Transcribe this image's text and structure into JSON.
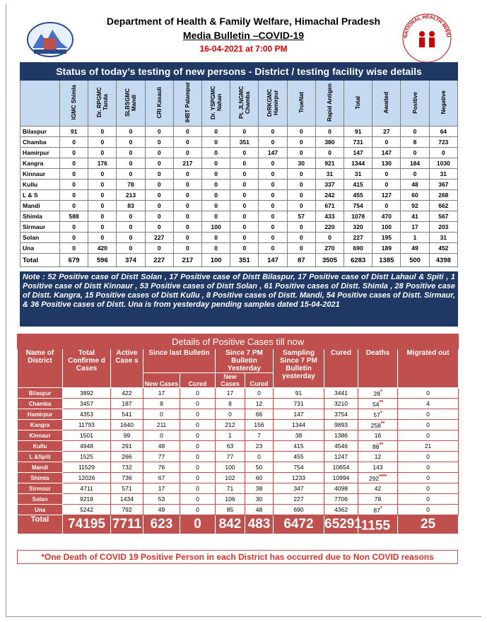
{
  "header": {
    "title": "Department of Health & Family Welfare, Himachal Pradesh",
    "subtitle": "Media Bulletin –COVID-19",
    "date": "16-04-2021 at 7:00 PM",
    "logo_text": "NATIONAL HEALTH MISSION"
  },
  "testing": {
    "title": "Status of today’s testing of new persons - District / testing facility wise details",
    "columns": [
      "IGMC Shimla",
      "Dr. RPGMC Tanda",
      "SLBSGMC Mandi",
      "CRI Kasauli",
      "IHBT Palampur",
      "Dr. YSPGMC Nahan",
      "Pt. JLNGMC Chamba",
      "DrRKGMC Hamirpur",
      "TrueNat",
      "Rapid Antigen",
      "Total",
      "Awaited",
      "Positive",
      "Negative"
    ],
    "rows": [
      [
        "Bilaspur",
        "91",
        "0",
        "0",
        "0",
        "0",
        "0",
        "0",
        "0",
        "0",
        "0",
        "91",
        "27",
        "0",
        "64"
      ],
      [
        "Chamba",
        "0",
        "0",
        "0",
        "0",
        "0",
        "0",
        "351",
        "0",
        "0",
        "380",
        "731",
        "0",
        "8",
        "723"
      ],
      [
        "Hamirpur",
        "0",
        "0",
        "0",
        "0",
        "0",
        "0",
        "0",
        "147",
        "0",
        "0",
        "147",
        "147",
        "0",
        "0"
      ],
      [
        "Kangra",
        "0",
        "176",
        "0",
        "0",
        "217",
        "0",
        "0",
        "0",
        "30",
        "921",
        "1344",
        "130",
        "184",
        "1030"
      ],
      [
        "Kinnaur",
        "0",
        "0",
        "0",
        "0",
        "0",
        "0",
        "0",
        "0",
        "0",
        "31",
        "31",
        "0",
        "0",
        "31"
      ],
      [
        "Kullu",
        "0",
        "0",
        "78",
        "0",
        "0",
        "0",
        "0",
        "0",
        "0",
        "337",
        "415",
        "0",
        "48",
        "367"
      ],
      [
        "L & S",
        "0",
        "0",
        "213",
        "0",
        "0",
        "0",
        "0",
        "0",
        "0",
        "242",
        "455",
        "127",
        "60",
        "268"
      ],
      [
        "Mandi",
        "0",
        "0",
        "83",
        "0",
        "0",
        "0",
        "0",
        "0",
        "0",
        "671",
        "754",
        "0",
        "92",
        "662"
      ],
      [
        "Shimla",
        "588",
        "0",
        "0",
        "0",
        "0",
        "0",
        "0",
        "0",
        "57",
        "433",
        "1078",
        "470",
        "41",
        "567"
      ],
      [
        "Sirmaur",
        "0",
        "0",
        "0",
        "0",
        "0",
        "100",
        "0",
        "0",
        "0",
        "220",
        "320",
        "100",
        "17",
        "203"
      ],
      [
        "Solan",
        "0",
        "0",
        "0",
        "227",
        "0",
        "0",
        "0",
        "0",
        "0",
        "0",
        "227",
        "195",
        "1",
        "31"
      ],
      [
        "Una",
        "0",
        "420",
        "0",
        "0",
        "0",
        "0",
        "0",
        "0",
        "0",
        "270",
        "690",
        "189",
        "49",
        "452"
      ],
      [
        "Total",
        "679",
        "596",
        "374",
        "227",
        "217",
        "100",
        "351",
        "147",
        "87",
        "3505",
        "6283",
        "1385",
        "500",
        "4398"
      ]
    ],
    "note": "Note : 52  Positive case of Distt Solan , 17  Positive case of Distt Bilaspur,  17  Positive case of Distt Lahaul & Spiti , 1 Positive case of Distt Kinnaur , 53 Positive cases of Distt Solan ,  61 Positive cases of Distt. Shimla , 28 Positive case of Distt. Kangra, 15 Positive cases of Distt Kullu , 8 Positive cases of Distt. Mandi, 54 Positive cases of Distt. Sirmaur, & 36 Positive cases of Distt. Una  is from yesterday pending samples dated  15-04-2021"
  },
  "positive": {
    "title": "Details of Positive Cases till now",
    "headers": {
      "name": "Name of District",
      "total": "Total Confirme d Cases",
      "active": "Active Case s",
      "since_last": "Since last Bulletin",
      "since_7pm": "Since 7 PM Bulletin Yesterday",
      "new_cases": "New Cases",
      "cured": "Cured",
      "sampling": "Sampling Since 7 PM Bulletin yesterday",
      "cured_total": "Cured",
      "deaths": "Deaths",
      "migrated": "Migrated out"
    },
    "rows": [
      [
        "Bilaspur",
        "3892",
        "422",
        "17",
        "0",
        "17",
        "0",
        "91",
        "3441",
        "28",
        "0"
      ],
      [
        "Chamba",
        "3457",
        "187",
        "8",
        "0",
        "8",
        "12",
        "731",
        "3210",
        "54",
        "4"
      ],
      [
        "Hamirpur",
        "4353",
        "541",
        "0",
        "0",
        "0",
        "66",
        "147",
        "3754",
        "57",
        "0"
      ],
      [
        "Kangra",
        "11793",
        "1640",
        "211",
        "0",
        "212",
        "156",
        "1344",
        "9893",
        "258",
        "0"
      ],
      [
        "Kinnaur",
        "1501",
        "99",
        "0",
        "0",
        "1",
        "7",
        "38",
        "1386",
        "16",
        "0"
      ],
      [
        "Kullu",
        "4948",
        "291",
        "48",
        "0",
        "63",
        "23",
        "415",
        "4546",
        "88",
        "21"
      ],
      [
        "L &Spiti",
        "1525",
        "266",
        "77",
        "0",
        "77",
        "0",
        "455",
        "1247",
        "12",
        "0"
      ],
      [
        "Mandi",
        "11529",
        "732",
        "76",
        "0",
        "100",
        "50",
        "754",
        "10654",
        "143",
        "0"
      ],
      [
        "Shimla",
        "12026",
        "736",
        "67",
        "0",
        "102",
        "60",
        "1233",
        "10994",
        "292",
        "0"
      ],
      [
        "Sirmour",
        "4711",
        "571",
        "17",
        "0",
        "71",
        "38",
        "347",
        "4098",
        "42",
        "0"
      ],
      [
        "Solan",
        "9218",
        "1434",
        "53",
        "0",
        "106",
        "30",
        "227",
        "7706",
        "78",
        "0"
      ],
      [
        "Una",
        "5242",
        "792",
        "49",
        "0",
        "85",
        "48",
        "690",
        "4362",
        "87",
        "0"
      ]
    ],
    "death_marks": [
      "*",
      "**",
      "*",
      "**",
      null,
      "**",
      null,
      null,
      "****",
      null,
      null,
      "*"
    ],
    "total": [
      "Total",
      "74195",
      "7711",
      "623",
      "0",
      "842",
      "483",
      "6472",
      "65291",
      "1155",
      "25"
    ],
    "total_death_mark": "*",
    "footnote": "*One Death of COVID 19 Positive Person in each District has occurred due to Non COVID reasons"
  }
}
